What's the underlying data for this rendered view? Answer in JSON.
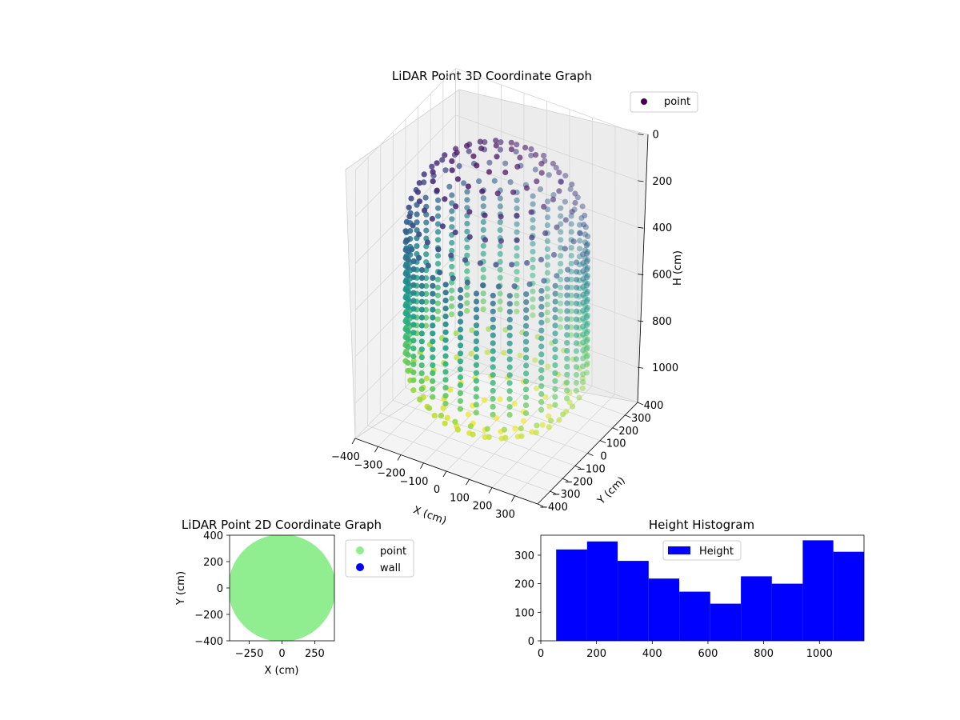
{
  "chart_data": [
    {
      "type": "scatter3d",
      "title": "LiDAR Point 3D Coordinate Graph",
      "xlabel": "X (cm)",
      "ylabel": "Y (cm)",
      "zlabel": "H (cm)",
      "xlim": [
        -400,
        400
      ],
      "ylim": [
        -400,
        400
      ],
      "zlim": [
        1150,
        0
      ],
      "xticks": [
        "−400",
        "−300",
        "−200",
        "−100",
        "0",
        "100",
        "200",
        "300"
      ],
      "yticks": [
        "−400",
        "−300",
        "−200",
        "−100",
        "0",
        "100",
        "200",
        "300",
        "400"
      ],
      "zticks": [
        "0",
        "200",
        "400",
        "600",
        "800",
        "1000"
      ],
      "legend": {
        "label": "point",
        "location": "upper right"
      },
      "colormap": "viridis",
      "series": [
        {
          "name": "point",
          "shape": "cylindrical wall with dome top and curved bottom",
          "radius_cm": 350,
          "h_range": [
            0,
            1150
          ],
          "color_by": "H"
        }
      ]
    },
    {
      "type": "scatter",
      "title": "LiDAR Point 2D Coordinate Graph",
      "xlabel": "X (cm)",
      "ylabel": "Y (cm)",
      "xlim": [
        -400,
        400
      ],
      "ylim": [
        -400,
        400
      ],
      "xticks": [
        "−250",
        "0",
        "250"
      ],
      "yticks": [
        "400",
        "200",
        "0",
        "−200",
        "−400"
      ],
      "legend_location": "outside right",
      "series": [
        {
          "name": "point",
          "color": "#90ee90",
          "fill_region": "disc radius ~400, clipped to axes"
        },
        {
          "name": "wall",
          "color": "#0000ff",
          "points": []
        }
      ]
    },
    {
      "type": "bar",
      "subtype": "histogram",
      "title": "Height Histogram",
      "xlim": [
        0,
        1160
      ],
      "ylim": [
        0,
        370
      ],
      "xticks": [
        "0",
        "200",
        "400",
        "600",
        "800",
        "1000"
      ],
      "yticks": [
        "0",
        "100",
        "200",
        "300"
      ],
      "legend": {
        "label": "Height",
        "location": "upper center"
      },
      "color": "#0000ff",
      "bin_edges": [
        55,
        166,
        276,
        387,
        497,
        608,
        718,
        829,
        940,
        1050,
        1160
      ],
      "values": [
        320,
        348,
        280,
        218,
        172,
        130,
        226,
        200,
        352,
        312
      ]
    }
  ]
}
